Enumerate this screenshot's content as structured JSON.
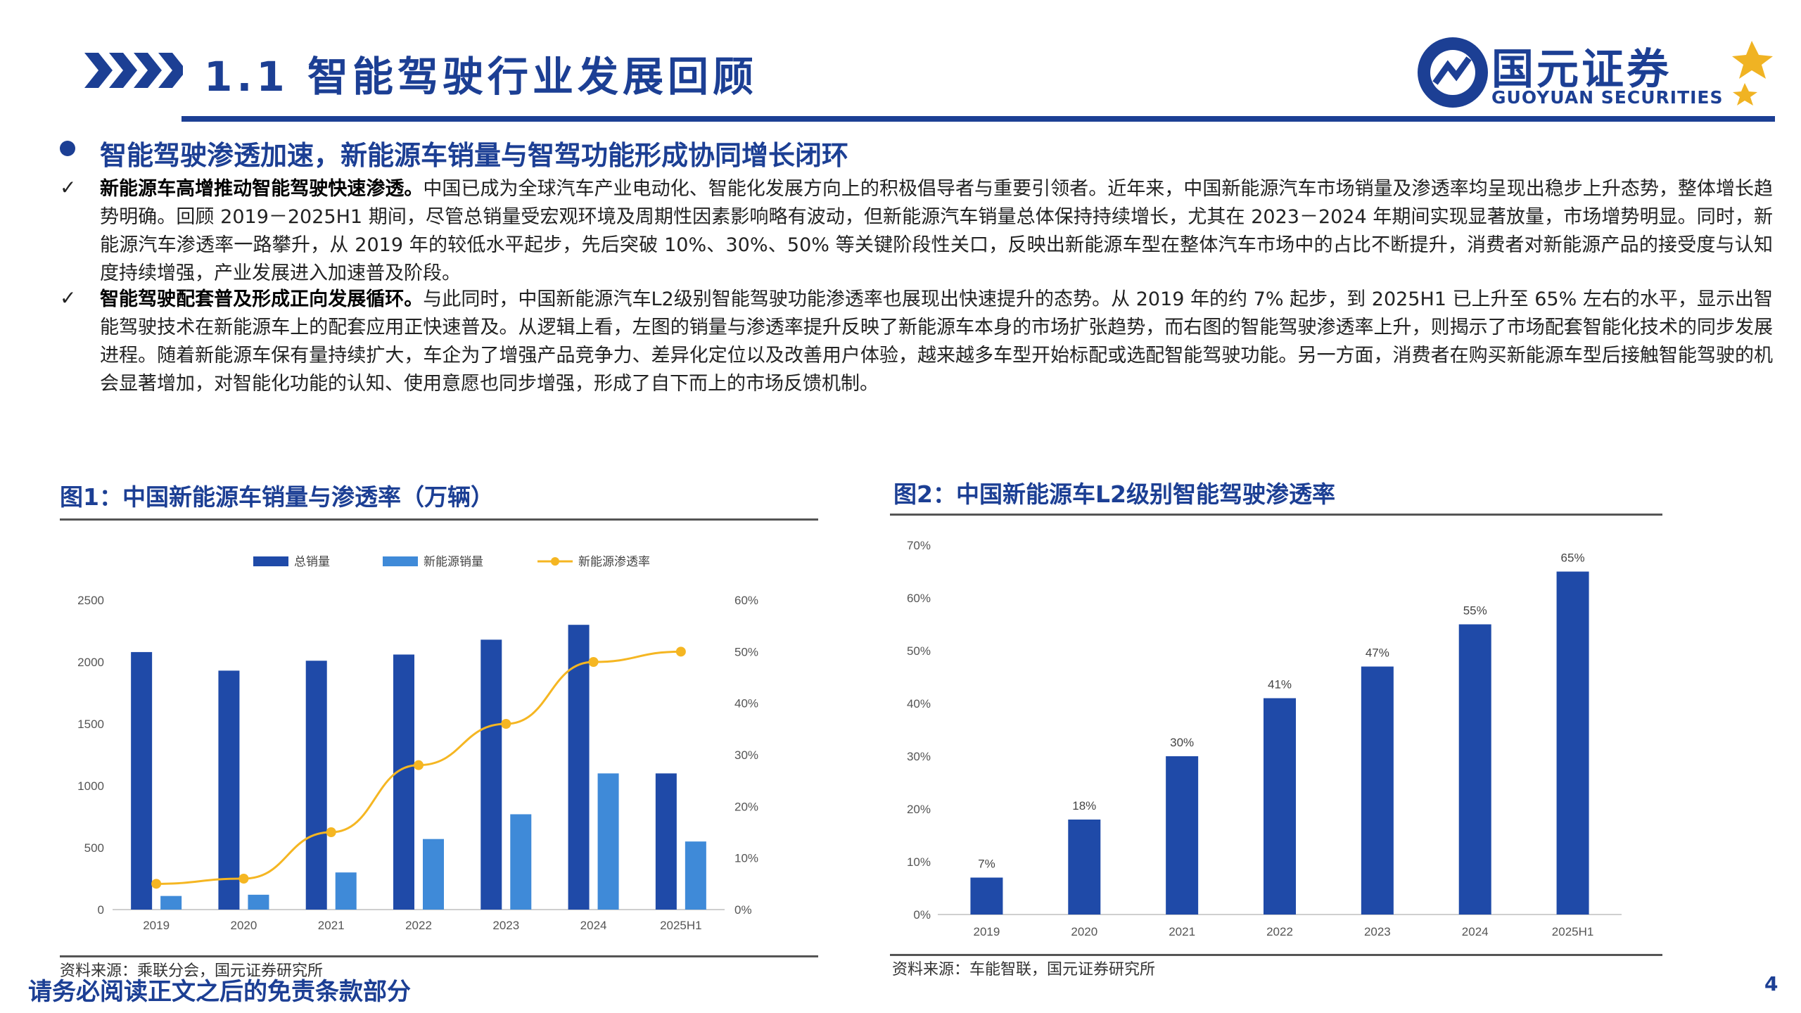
{
  "header": {
    "title": "1.1  智能驾驶行业发展回顾",
    "logo_name": "国元证券",
    "logo_en": "GUOYUAN SECURITIES"
  },
  "headline": "智能驾驶渗透加速，新能源车销量与智驾功能形成协同增长闭环",
  "paragraphs": [
    {
      "lead": "新能源车高增推动智能驾驶快速渗透。",
      "body": "中国已成为全球汽车产业电动化、智能化发展方向上的积极倡导者与重要引领者。近年来，中国新能源汽车市场销量及渗透率均呈现出稳步上升态势，整体增长趋势明确。回顾 2019－2025H1 期间，尽管总销量受宏观环境及周期性因素影响略有波动，但新能源汽车销量总体保持持续增长，尤其在 2023－2024 年期间实现显著放量，市场增势明显。同时，新能源汽车渗透率一路攀升，从 2019 年的较低水平起步，先后突破 10%、30%、50% 等关键阶段性关口，反映出新能源车型在整体汽车市场中的占比不断提升，消费者对新能源产品的接受度与认知度持续增强，产业发展进入加速普及阶段。"
    },
    {
      "lead": "智能驾驶配套普及形成正向发展循环。",
      "body": "与此同时，中国新能源汽车L2级别智能驾驶功能渗透率也展现出快速提升的态势。从 2019 年的约 7% 起步，到 2025H1 已上升至 65% 左右的水平，显示出智能驾驶技术在新能源车上的配套应用正快速普及。从逻辑上看，左图的销量与渗透率提升反映了新能源车本身的市场扩张趋势，而右图的智能驾驶渗透率上升，则揭示了市场配套智能化技术的同步发展进程。随着新能源车保有量持续扩大，车企为了增强产品竞争力、差异化定位以及改善用户体验，越来越多车型开始标配或选配智能驾驶功能。另一方面，消费者在购买新能源车型后接触智能驾驶的机会显著增加，对智能化功能的认知、使用意愿也同步增强，形成了自下而上的市场反馈机制。"
    }
  ],
  "check_mark": "✓",
  "figures": [
    {
      "title": "图1：中国新能源车销量与渗透率（万辆）",
      "source": "资料来源：乘联分会，国元证券研究所"
    },
    {
      "title": "图2：中国新能源车L2级别智能驾驶渗透率",
      "source": "资料来源：车能智联，国元证券研究所"
    }
  ],
  "footer": {
    "disclaimer": "请务必阅读正文之后的免责条款部分",
    "page_number": "4"
  },
  "colors": {
    "brand": "#1c3f94",
    "total_bar": "#1f4aa8",
    "nev_bar": "#3f8ad8",
    "line": "#f5b622",
    "logo_gold": "#f0b323"
  },
  "chart_data": [
    {
      "type": "bar",
      "categories": [
        "2019",
        "2020",
        "2021",
        "2022",
        "2023",
        "2024",
        "2025H1"
      ],
      "series": [
        {
          "name": "总销量",
          "type": "bar",
          "axis": "left",
          "values": [
            2080,
            1930,
            2010,
            2060,
            2180,
            2300,
            1100
          ]
        },
        {
          "name": "新能源销量",
          "type": "bar",
          "axis": "left",
          "values": [
            110,
            120,
            300,
            570,
            770,
            1100,
            550
          ]
        },
        {
          "name": "新能源渗透率",
          "type": "line",
          "axis": "right",
          "values": [
            5,
            6,
            15,
            28,
            36,
            48,
            50
          ]
        }
      ],
      "left_axis": {
        "min": 0,
        "max": 2500,
        "ticks": [
          "0",
          "500",
          "1000",
          "1500",
          "2000",
          "2500"
        ]
      },
      "right_axis": {
        "min": 0,
        "max": 60,
        "ticks": [
          "0%",
          "10%",
          "20%",
          "30%",
          "40%",
          "50%",
          "60%"
        ]
      },
      "legend_position": "top"
    },
    {
      "type": "bar",
      "categories": [
        "2019",
        "2020",
        "2021",
        "2022",
        "2023",
        "2024",
        "2025H1"
      ],
      "values": [
        7,
        18,
        30,
        41,
        47,
        55,
        65
      ],
      "data_labels": [
        "7%",
        "18%",
        "30%",
        "41%",
        "47%",
        "55%",
        "65%"
      ],
      "y_axis": {
        "min": 0,
        "max": 70,
        "ticks": [
          "0%",
          "10%",
          "20%",
          "30%",
          "40%",
          "50%",
          "60%",
          "70%"
        ]
      }
    }
  ]
}
